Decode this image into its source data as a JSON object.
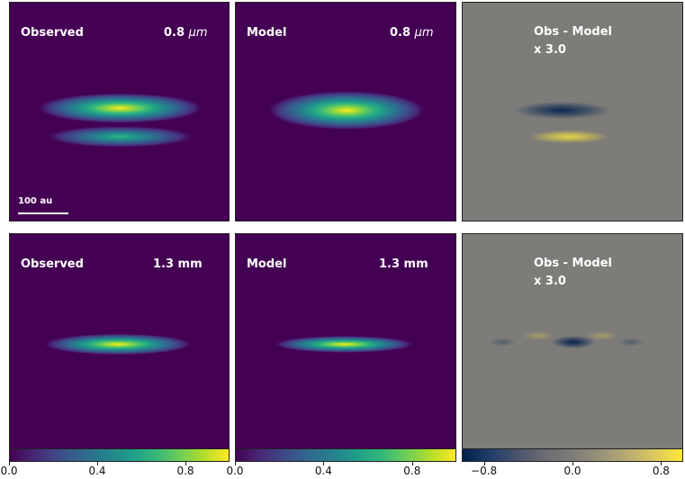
{
  "chart_data": {
    "type": "heatmap",
    "rows": [
      {
        "wavelength": "0.8 μm",
        "wavelength_value": "0.8",
        "wavelength_unit": "μm",
        "panels": [
          {
            "name": "observed",
            "label": "Observed",
            "kind": "image",
            "features": [
              {
                "lobe": "upper",
                "cx": 0.5,
                "cy": 0.48,
                "rx": 0.38,
                "ry": 0.07,
                "peak": 1.0
              },
              {
                "lobe": "lower",
                "cx": 0.5,
                "cy": 0.61,
                "rx": 0.34,
                "ry": 0.05,
                "peak": 0.65
              }
            ]
          },
          {
            "name": "model",
            "label": "Model",
            "kind": "image",
            "features": [
              {
                "lobe": "single",
                "cx": 0.5,
                "cy": 0.49,
                "rx": 0.36,
                "ry": 0.09,
                "peak": 1.0
              }
            ]
          },
          {
            "name": "residual",
            "label": "Obs - Model",
            "scale": "x 3.0",
            "kind": "residual",
            "features": [
              {
                "sign": "negative",
                "cx": 0.45,
                "cy": 0.49,
                "rx": 0.22,
                "ry": 0.04,
                "peak": -0.9
              },
              {
                "sign": "positive",
                "cx": 0.48,
                "cy": 0.61,
                "rx": 0.18,
                "ry": 0.03,
                "peak": 0.8
              }
            ]
          }
        ],
        "scalebar_label": "100 au"
      },
      {
        "wavelength": "1.3 mm",
        "wavelength_value": "1.3",
        "wavelength_unit": "mm",
        "panels": [
          {
            "name": "observed",
            "label": "Observed",
            "kind": "image",
            "features": [
              {
                "lobe": "single",
                "cx": 0.49,
                "cy": 0.51,
                "rx": 0.34,
                "ry": 0.05,
                "peak": 1.0
              }
            ]
          },
          {
            "name": "model",
            "label": "Model",
            "kind": "image",
            "features": [
              {
                "lobe": "single",
                "cx": 0.49,
                "cy": 0.51,
                "rx": 0.32,
                "ry": 0.04,
                "peak": 0.95
              }
            ]
          },
          {
            "name": "residual",
            "label": "Obs - Model",
            "scale": "x 3.0",
            "kind": "residual",
            "features": [
              {
                "sign": "negative",
                "cx": 0.5,
                "cy": 0.5,
                "rx": 0.1,
                "ry": 0.03,
                "peak": -0.95
              },
              {
                "sign": "negative",
                "cx": 0.18,
                "cy": 0.5,
                "rx": 0.06,
                "ry": 0.02,
                "peak": -0.3
              },
              {
                "sign": "negative",
                "cx": 0.76,
                "cy": 0.5,
                "rx": 0.06,
                "ry": 0.02,
                "peak": -0.3
              },
              {
                "sign": "positive",
                "cx": 0.34,
                "cy": 0.47,
                "rx": 0.07,
                "ry": 0.02,
                "peak": 0.3
              },
              {
                "sign": "positive",
                "cx": 0.63,
                "cy": 0.47,
                "rx": 0.07,
                "ry": 0.02,
                "peak": 0.3
              }
            ]
          }
        ]
      }
    ],
    "colorbars": [
      {
        "name": "viridis",
        "min": 0.0,
        "max": 1.0,
        "ticks": [
          "0.0",
          "0.4",
          "0.8"
        ],
        "tick_values": [
          0.0,
          0.4,
          0.8
        ]
      },
      {
        "name": "viridis",
        "min": 0.0,
        "max": 1.0,
        "ticks": [
          "0.0",
          "0.4",
          "0.8"
        ],
        "tick_values": [
          0.0,
          0.4,
          0.8
        ]
      },
      {
        "name": "cividis-diverging",
        "min": -1.0,
        "max": 1.0,
        "ticks": [
          "−0.8",
          "0.0",
          "0.8"
        ],
        "tick_values": [
          -0.8,
          0.0,
          0.8
        ]
      }
    ],
    "colors": {
      "viridis_low": "#440154",
      "residual_bg": "#7d7c79",
      "residual_negative": "#00204d",
      "residual_positive": "#fde838"
    }
  }
}
